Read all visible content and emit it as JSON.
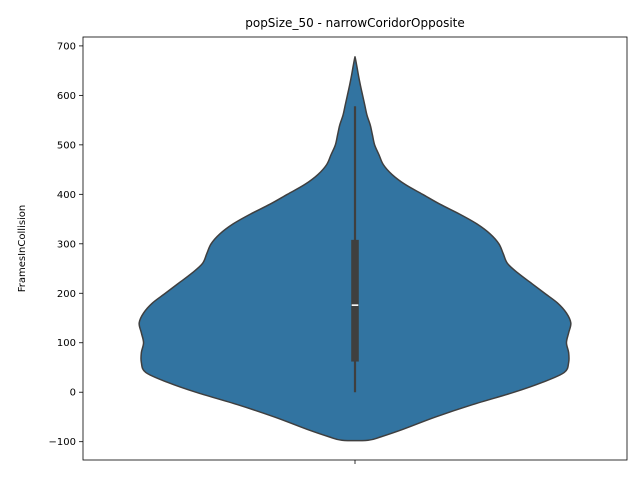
{
  "chart_data": {
    "type": "violin",
    "title": "popSize_50 - narrowCoridorOpposite",
    "xlabel": "",
    "ylabel": "FramesInCollision",
    "ylim": [
      -137,
      718
    ],
    "yticks": [
      -100,
      0,
      100,
      200,
      300,
      400,
      500,
      600,
      700
    ],
    "categories": [
      ""
    ],
    "grid": false,
    "colors": {
      "violin_fill": "#3274a1",
      "violin_edge": "#3f3f3f",
      "box": "#3f3f3f",
      "median": "#ffffff"
    },
    "series": [
      {
        "summary": {
          "min": 0,
          "q1": 62,
          "median": 176,
          "q3": 308,
          "max": 578
        },
        "kde_extent": [
          -97,
          676
        ],
        "density_profile": [
          [
            -97,
            0.06
          ],
          [
            -90,
            0.12
          ],
          [
            -75,
            0.22
          ],
          [
            -50,
            0.37
          ],
          [
            -25,
            0.54
          ],
          [
            0,
            0.73
          ],
          [
            20,
            0.86
          ],
          [
            40,
            0.96
          ],
          [
            60,
            0.98
          ],
          [
            80,
            0.98
          ],
          [
            100,
            0.97
          ],
          [
            120,
            0.98
          ],
          [
            140,
            0.99
          ],
          [
            160,
            0.97
          ],
          [
            180,
            0.93
          ],
          [
            200,
            0.87
          ],
          [
            220,
            0.81
          ],
          [
            240,
            0.75
          ],
          [
            260,
            0.7
          ],
          [
            280,
            0.68
          ],
          [
            300,
            0.66
          ],
          [
            320,
            0.62
          ],
          [
            340,
            0.56
          ],
          [
            360,
            0.48
          ],
          [
            380,
            0.39
          ],
          [
            400,
            0.31
          ],
          [
            420,
            0.23
          ],
          [
            440,
            0.17
          ],
          [
            460,
            0.13
          ],
          [
            480,
            0.11
          ],
          [
            500,
            0.09
          ],
          [
            520,
            0.08
          ],
          [
            540,
            0.07
          ],
          [
            560,
            0.055
          ],
          [
            580,
            0.045
          ],
          [
            600,
            0.035
          ],
          [
            620,
            0.025
          ],
          [
            640,
            0.016
          ],
          [
            660,
            0.008
          ],
          [
            676,
            0.001
          ]
        ]
      }
    ]
  }
}
